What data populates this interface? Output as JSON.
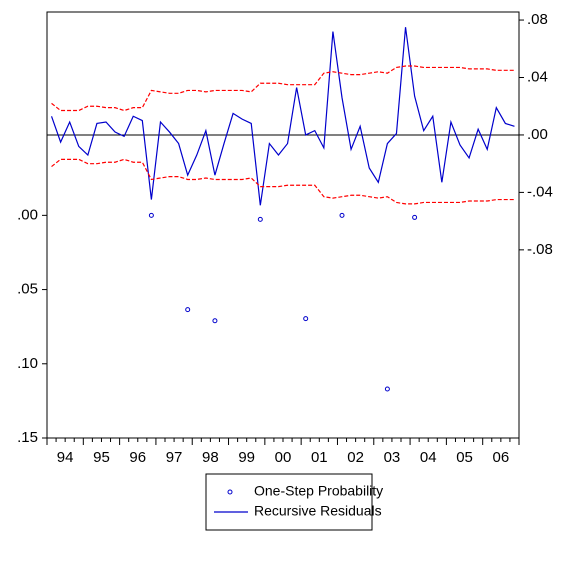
{
  "chart_data": {
    "type": "line",
    "categories": [
      "94",
      null,
      null,
      null,
      "95",
      null,
      null,
      null,
      "96",
      null,
      null,
      null,
      "97",
      null,
      null,
      null,
      "98",
      null,
      null,
      null,
      "99",
      null,
      null,
      null,
      "00",
      null,
      null,
      null,
      "01",
      null,
      null,
      null,
      "02",
      null,
      null,
      null,
      "03",
      null,
      null,
      null,
      "04",
      null,
      null,
      null,
      "05",
      null,
      null,
      null,
      "06",
      null,
      null,
      null
    ],
    "ylim": [
      0.15,
      -0.137
    ],
    "yticks": [
      {
        "value": 0,
        "label": ".00"
      },
      {
        "value": 0.05,
        "label": ".05"
      },
      {
        "value": 0.1,
        "label": ".10"
      },
      {
        "value": 0.15,
        "label": ".15"
      }
    ],
    "y2lim": [
      -0.211,
      0.0856
    ],
    "y2ticks": [
      {
        "value": 0.08,
        "label": ".08"
      },
      {
        "value": 0.04,
        "label": ".04"
      },
      {
        "value": 0,
        "label": ".00"
      },
      {
        "value": -0.04,
        "label": "-.04"
      },
      {
        "value": -0.08,
        "label": "-.08"
      }
    ],
    "series": [
      {
        "name": "One-Step Probability",
        "color": "#0000cc",
        "marker": "circle",
        "values": [
          null,
          null,
          null,
          null,
          null,
          null,
          null,
          null,
          null,
          null,
          null,
          0.0,
          null,
          null,
          null,
          0.0635,
          null,
          null,
          0.071,
          null,
          null,
          null,
          null,
          0.0027,
          null,
          null,
          null,
          null,
          0.0696,
          null,
          null,
          null,
          0.0,
          null,
          null,
          null,
          null,
          0.117,
          null,
          null,
          0.0014,
          null,
          null,
          null,
          null,
          null,
          null,
          null,
          null,
          null,
          null,
          null
        ]
      },
      {
        "name": "Recursive Residuals",
        "color": "#0000cc",
        "axis": "y2",
        "values": [
          0.013,
          -0.005,
          0.009,
          -0.008,
          -0.014,
          0.008,
          0.009,
          0.002,
          -0.001,
          0.013,
          0.01,
          -0.045,
          0.009,
          0.002,
          -0.006,
          -0.028,
          -0.014,
          0.003,
          -0.028,
          -0.006,
          0.015,
          0.011,
          0.008,
          -0.049,
          -0.006,
          -0.014,
          -0.006,
          0.033,
          0.0,
          0.003,
          -0.009,
          0.072,
          0.026,
          -0.01,
          0.006,
          -0.023,
          -0.033,
          -0.006,
          0.001,
          0.075,
          0.027,
          0.003,
          0.013,
          -0.033,
          0.009,
          -0.007,
          -0.016,
          0.004,
          -0.01,
          0.019,
          0.008,
          0.006
        ]
      },
      {
        "color": "#ff0000",
        "axis": "y2",
        "dash": true,
        "values": [
          0.022,
          0.017,
          0.017,
          0.017,
          0.02,
          0.02,
          0.019,
          0.019,
          0.017,
          0.019,
          0.019,
          0.031,
          0.03,
          0.029,
          0.029,
          0.031,
          0.031,
          0.03,
          0.031,
          0.031,
          0.031,
          0.031,
          0.03,
          0.036,
          0.036,
          0.036,
          0.035,
          0.035,
          0.035,
          0.035,
          0.043,
          0.044,
          0.043,
          0.042,
          0.042,
          0.043,
          0.044,
          0.043,
          0.047,
          0.048,
          0.048,
          0.047,
          0.047,
          0.047,
          0.047,
          0.047,
          0.046,
          0.046,
          0.046,
          0.045,
          0.045,
          0.045
        ]
      },
      {
        "color": "#ff0000",
        "axis": "y2",
        "dash": true,
        "values": [
          -0.022,
          -0.017,
          -0.017,
          -0.017,
          -0.02,
          -0.02,
          -0.019,
          -0.019,
          -0.017,
          -0.019,
          -0.019,
          -0.031,
          -0.03,
          -0.029,
          -0.029,
          -0.031,
          -0.031,
          -0.03,
          -0.031,
          -0.031,
          -0.031,
          -0.031,
          -0.03,
          -0.036,
          -0.036,
          -0.036,
          -0.035,
          -0.035,
          -0.035,
          -0.035,
          -0.043,
          -0.044,
          -0.043,
          -0.042,
          -0.042,
          -0.043,
          -0.044,
          -0.043,
          -0.047,
          -0.048,
          -0.048,
          -0.047,
          -0.047,
          -0.047,
          -0.047,
          -0.047,
          -0.046,
          -0.046,
          -0.046,
          -0.045,
          -0.045,
          -0.045
        ]
      }
    ]
  }
}
